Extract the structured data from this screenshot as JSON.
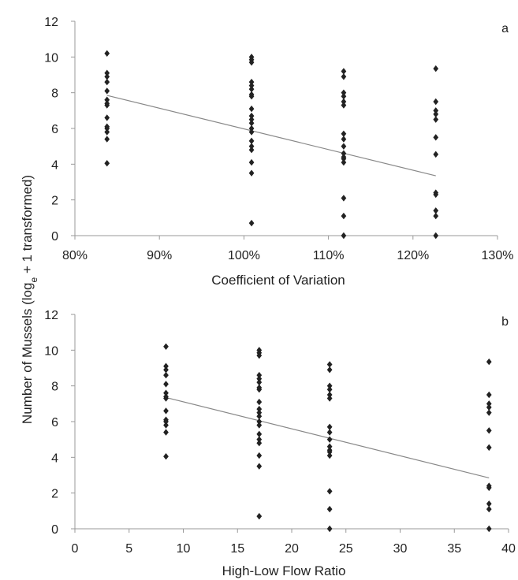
{
  "figure": {
    "ylabel_main": "Number of Mussels (log",
    "ylabel_sub": "e",
    "ylabel_tail": " + 1 transformed)"
  },
  "chart_data": [
    {
      "type": "scatter",
      "panel_label": "a",
      "xlabel": "Coefficient of Variation",
      "xlim": [
        0.8,
        1.3
      ],
      "ylim": [
        0,
        12
      ],
      "xticks": [
        0.8,
        0.9,
        1.0,
        1.1,
        1.2,
        1.3
      ],
      "xtick_labels": [
        "80%",
        "90%",
        "100%",
        "110%",
        "120%",
        "130%"
      ],
      "yticks": [
        0,
        2,
        4,
        6,
        8,
        10,
        12
      ],
      "ytick_labels": [
        "0",
        "2",
        "4",
        "6",
        "8",
        "10",
        "12"
      ],
      "grid": false,
      "marker": "diamond",
      "marker_color": "#222222",
      "trendline_color": "#888888",
      "series": [
        {
          "points": [
            [
              0.838,
              10.2
            ],
            [
              0.838,
              9.1
            ],
            [
              0.838,
              8.9
            ],
            [
              0.838,
              8.6
            ],
            [
              0.838,
              8.1
            ],
            [
              0.838,
              7.6
            ],
            [
              0.838,
              7.4
            ],
            [
              0.838,
              7.3
            ],
            [
              0.838,
              6.6
            ],
            [
              0.838,
              6.1
            ],
            [
              0.838,
              6.0
            ],
            [
              0.838,
              5.8
            ],
            [
              0.838,
              5.4
            ],
            [
              0.838,
              4.05
            ],
            [
              1.009,
              10.0
            ],
            [
              1.009,
              9.85
            ],
            [
              1.009,
              9.7
            ],
            [
              1.009,
              8.6
            ],
            [
              1.009,
              8.4
            ],
            [
              1.009,
              8.2
            ],
            [
              1.009,
              7.9
            ],
            [
              1.009,
              7.8
            ],
            [
              1.009,
              7.1
            ],
            [
              1.009,
              6.7
            ],
            [
              1.009,
              6.5
            ],
            [
              1.009,
              6.3
            ],
            [
              1.009,
              6.0
            ],
            [
              1.009,
              5.8
            ],
            [
              1.009,
              5.3
            ],
            [
              1.009,
              5.0
            ],
            [
              1.009,
              4.8
            ],
            [
              1.009,
              4.1
            ],
            [
              1.009,
              3.5
            ],
            [
              1.009,
              0.7
            ],
            [
              1.118,
              9.2
            ],
            [
              1.118,
              8.9
            ],
            [
              1.118,
              8.0
            ],
            [
              1.118,
              7.8
            ],
            [
              1.118,
              7.5
            ],
            [
              1.118,
              7.3
            ],
            [
              1.118,
              5.7
            ],
            [
              1.118,
              5.4
            ],
            [
              1.118,
              5.0
            ],
            [
              1.118,
              4.6
            ],
            [
              1.118,
              4.4
            ],
            [
              1.118,
              4.3
            ],
            [
              1.118,
              4.1
            ],
            [
              1.118,
              2.1
            ],
            [
              1.118,
              1.1
            ],
            [
              1.118,
              0.0
            ],
            [
              1.227,
              9.35
            ],
            [
              1.227,
              7.5
            ],
            [
              1.227,
              7.0
            ],
            [
              1.227,
              6.8
            ],
            [
              1.227,
              6.5
            ],
            [
              1.227,
              5.5
            ],
            [
              1.227,
              4.55
            ],
            [
              1.227,
              2.4
            ],
            [
              1.227,
              2.3
            ],
            [
              1.227,
              1.4
            ],
            [
              1.227,
              1.1
            ],
            [
              1.227,
              0.0
            ]
          ]
        }
      ],
      "trendline": {
        "x": [
          0.838,
          1.227
        ],
        "y": [
          7.85,
          3.35
        ]
      }
    },
    {
      "type": "scatter",
      "panel_label": "b",
      "xlabel": "High-Low Flow Ratio",
      "xlim": [
        0,
        40
      ],
      "ylim": [
        0,
        12
      ],
      "xticks": [
        0,
        5,
        10,
        15,
        20,
        25,
        30,
        35,
        40
      ],
      "xtick_labels": [
        "0",
        "5",
        "10",
        "15",
        "20",
        "25",
        "30",
        "35",
        "40"
      ],
      "yticks": [
        0,
        2,
        4,
        6,
        8,
        10,
        12
      ],
      "ytick_labels": [
        "0",
        "2",
        "4",
        "6",
        "8",
        "10",
        "12"
      ],
      "grid": false,
      "marker": "diamond",
      "marker_color": "#222222",
      "trendline_color": "#888888",
      "series": [
        {
          "points": [
            [
              8.4,
              10.2
            ],
            [
              8.4,
              9.1
            ],
            [
              8.4,
              8.9
            ],
            [
              8.4,
              8.6
            ],
            [
              8.4,
              8.1
            ],
            [
              8.4,
              7.6
            ],
            [
              8.4,
              7.4
            ],
            [
              8.4,
              7.3
            ],
            [
              8.4,
              6.6
            ],
            [
              8.4,
              6.1
            ],
            [
              8.4,
              6.0
            ],
            [
              8.4,
              5.8
            ],
            [
              8.4,
              5.4
            ],
            [
              8.4,
              4.05
            ],
            [
              17.0,
              10.0
            ],
            [
              17.0,
              9.85
            ],
            [
              17.0,
              9.7
            ],
            [
              17.0,
              8.6
            ],
            [
              17.0,
              8.4
            ],
            [
              17.0,
              8.2
            ],
            [
              17.0,
              7.9
            ],
            [
              17.0,
              7.8
            ],
            [
              17.0,
              7.1
            ],
            [
              17.0,
              6.7
            ],
            [
              17.0,
              6.5
            ],
            [
              17.0,
              6.3
            ],
            [
              17.0,
              6.0
            ],
            [
              17.0,
              5.8
            ],
            [
              17.0,
              5.3
            ],
            [
              17.0,
              5.0
            ],
            [
              17.0,
              4.8
            ],
            [
              17.0,
              4.1
            ],
            [
              17.0,
              3.5
            ],
            [
              17.0,
              0.7
            ],
            [
              23.5,
              9.2
            ],
            [
              23.5,
              8.9
            ],
            [
              23.5,
              8.0
            ],
            [
              23.5,
              7.8
            ],
            [
              23.5,
              7.5
            ],
            [
              23.5,
              7.3
            ],
            [
              23.5,
              5.7
            ],
            [
              23.5,
              5.4
            ],
            [
              23.5,
              5.0
            ],
            [
              23.5,
              4.6
            ],
            [
              23.5,
              4.4
            ],
            [
              23.5,
              4.3
            ],
            [
              23.5,
              4.1
            ],
            [
              23.5,
              2.1
            ],
            [
              23.5,
              1.1
            ],
            [
              23.5,
              0.0
            ],
            [
              38.2,
              9.35
            ],
            [
              38.2,
              7.5
            ],
            [
              38.2,
              7.0
            ],
            [
              38.2,
              6.8
            ],
            [
              38.2,
              6.5
            ],
            [
              38.2,
              5.5
            ],
            [
              38.2,
              4.55
            ],
            [
              38.2,
              2.4
            ],
            [
              38.2,
              2.3
            ],
            [
              38.2,
              1.4
            ],
            [
              38.2,
              1.1
            ],
            [
              38.2,
              0.0
            ]
          ]
        }
      ],
      "trendline": {
        "x": [
          8.4,
          38.2
        ],
        "y": [
          7.35,
          2.85
        ]
      }
    }
  ]
}
